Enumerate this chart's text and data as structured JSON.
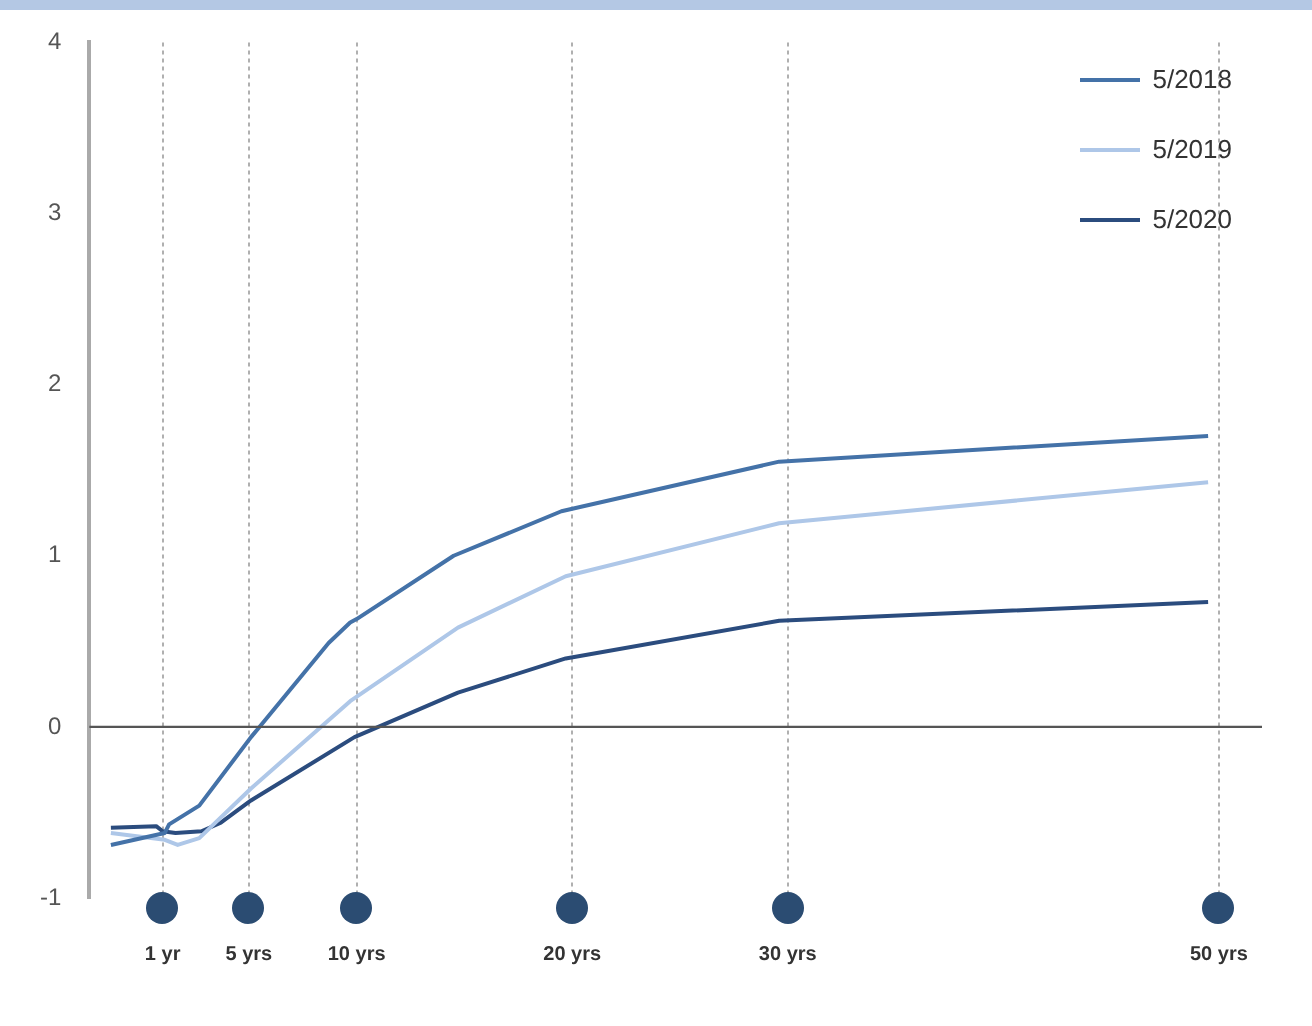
{
  "chart_data": {
    "type": "line",
    "series": [
      {
        "name": "5/2018",
        "color": "#4472a8",
        "x": [
          -1.4,
          1.1,
          1.3,
          2.7,
          5.1,
          8.7,
          9.7,
          10,
          14.5,
          19.5,
          29.6,
          49.5
        ],
        "values": [
          -0.69,
          -0.62,
          -0.57,
          -0.46,
          -0.06,
          0.49,
          0.61,
          0.63,
          1.0,
          1.26,
          1.55,
          1.7
        ]
      },
      {
        "name": "5/2019",
        "color": "#aec7e8",
        "x": [
          -1.4,
          1.1,
          1.7,
          2.7,
          5.1,
          9.7,
          14.7,
          19.7,
          29.6,
          49.5
        ],
        "values": [
          -0.62,
          -0.66,
          -0.69,
          -0.65,
          -0.36,
          0.15,
          0.58,
          0.88,
          1.19,
          1.43
        ]
      },
      {
        "name": "5/2020",
        "color": "#2b4c7e",
        "x": [
          -1.4,
          0.7,
          1.0,
          1.6,
          2.8,
          3.7,
          5.1,
          9.9,
          14.7,
          19.7,
          29.6,
          49.5
        ],
        "values": [
          -0.59,
          -0.58,
          -0.61,
          -0.62,
          -0.61,
          -0.56,
          -0.43,
          -0.06,
          0.2,
          0.4,
          0.62,
          0.73
        ]
      }
    ],
    "xlim": [
      -2.4,
      52
    ],
    "xticks": [
      {
        "value": 1,
        "label": "1 yr"
      },
      {
        "value": 5,
        "label": "5 yrs"
      },
      {
        "value": 10,
        "label": "10 yrs"
      },
      {
        "value": 20,
        "label": "20 yrs"
      },
      {
        "value": 30,
        "label": "30 yrs"
      },
      {
        "value": 50,
        "label": "50 yrs"
      }
    ],
    "ylim": [
      -1,
      4
    ],
    "yticks": [
      -1,
      0,
      1,
      2,
      3,
      4
    ],
    "ref_lines": [
      {
        "axis": "y",
        "value": 0,
        "color": "#555555"
      }
    ],
    "grid": "x",
    "legend": "top right",
    "marker": "none",
    "line_style": "solid"
  }
}
